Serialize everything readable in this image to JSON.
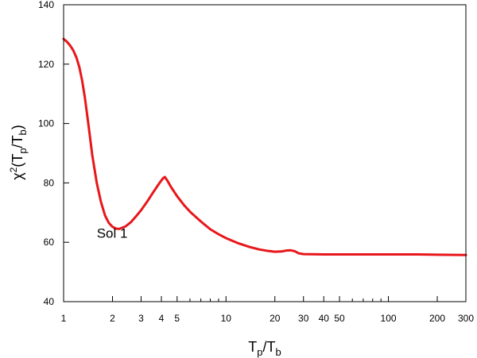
{
  "chart_data": {
    "type": "line",
    "x_scale": "log",
    "xlim": [
      1,
      300
    ],
    "ylim": [
      40,
      140
    ],
    "grid": false,
    "xlabel": {
      "main": "T",
      "sub1": "p",
      "mid": "/T",
      "sub2": "b"
    },
    "ylabel": {
      "pre": "χ",
      "sup": "2",
      "open": "(T",
      "sub1": "p",
      "mid": "/T",
      "sub2": "b",
      "close": ")"
    },
    "x_ticks": [
      {
        "value": 1,
        "label": "1"
      },
      {
        "value": 2,
        "label": "2"
      },
      {
        "value": 3,
        "label": "3"
      },
      {
        "value": 4,
        "label": "4"
      },
      {
        "value": 5,
        "label": "5"
      },
      {
        "value": 10,
        "label": "10"
      },
      {
        "value": 20,
        "label": "20"
      },
      {
        "value": 30,
        "label": "30"
      },
      {
        "value": 40,
        "label": "40"
      },
      {
        "value": 50,
        "label": "50"
      },
      {
        "value": 100,
        "label": "100"
      },
      {
        "value": 200,
        "label": "200"
      },
      {
        "value": 300,
        "label": "300"
      }
    ],
    "x_minor_ticks": [
      6,
      7,
      8,
      9,
      60,
      70,
      80,
      90
    ],
    "y_ticks": [
      {
        "value": 40,
        "label": "40"
      },
      {
        "value": 60,
        "label": "60"
      },
      {
        "value": 80,
        "label": "80"
      },
      {
        "value": 100,
        "label": "100"
      },
      {
        "value": 120,
        "label": "120"
      },
      {
        "value": 140,
        "label": "140"
      }
    ],
    "annotation": {
      "text": "Sol 1",
      "x": 1.6,
      "y": 61.5
    },
    "series": [
      {
        "color": "#e8161a",
        "points": [
          [
            1.0,
            128.5
          ],
          [
            1.05,
            127.5
          ],
          [
            1.1,
            126.2
          ],
          [
            1.15,
            124.5
          ],
          [
            1.2,
            122.2
          ],
          [
            1.25,
            119.0
          ],
          [
            1.3,
            114.5
          ],
          [
            1.35,
            109.0
          ],
          [
            1.4,
            102.5
          ],
          [
            1.45,
            96.0
          ],
          [
            1.5,
            89.5
          ],
          [
            1.6,
            80.0
          ],
          [
            1.7,
            73.5
          ],
          [
            1.8,
            69.0
          ],
          [
            1.9,
            66.5
          ],
          [
            2.0,
            65.2
          ],
          [
            2.1,
            64.6
          ],
          [
            2.2,
            64.5
          ],
          [
            2.4,
            65.3
          ],
          [
            2.6,
            66.8
          ],
          [
            2.8,
            68.8
          ],
          [
            3.0,
            70.8
          ],
          [
            3.3,
            74.0
          ],
          [
            3.6,
            77.2
          ],
          [
            3.9,
            80.0
          ],
          [
            4.1,
            81.6
          ],
          [
            4.2,
            82.0
          ],
          [
            4.35,
            80.8
          ],
          [
            4.6,
            78.5
          ],
          [
            5.0,
            75.5
          ],
          [
            5.5,
            72.6
          ],
          [
            6.0,
            70.3
          ],
          [
            7.0,
            67.0
          ],
          [
            8.0,
            64.4
          ],
          [
            9.0,
            62.7
          ],
          [
            10.0,
            61.4
          ],
          [
            12.0,
            59.6
          ],
          [
            14.0,
            58.4
          ],
          [
            16.0,
            57.6
          ],
          [
            18.0,
            57.1
          ],
          [
            20.0,
            56.8
          ],
          [
            22.0,
            56.9
          ],
          [
            23.5,
            57.2
          ],
          [
            25.0,
            57.3
          ],
          [
            26.5,
            57.0
          ],
          [
            28.0,
            56.3
          ],
          [
            30.0,
            56.0
          ],
          [
            40.0,
            55.9
          ],
          [
            60.0,
            55.9
          ],
          [
            100.0,
            55.9
          ],
          [
            150.0,
            55.9
          ],
          [
            200.0,
            55.8
          ],
          [
            300.0,
            55.7
          ]
        ]
      }
    ]
  }
}
